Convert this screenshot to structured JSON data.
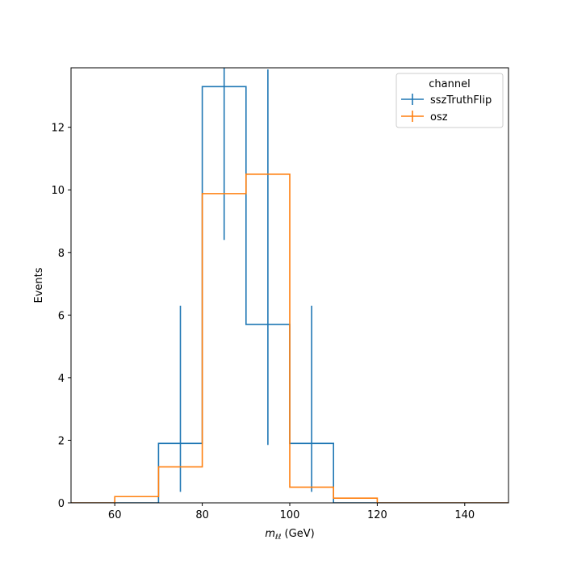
{
  "chart_data": {
    "type": "step",
    "xlabel_main": "m",
    "xlabel_sub": "ℓℓ",
    "xlabel_unit": " (GeV)",
    "ylabel": "Events",
    "xlim": [
      50,
      150
    ],
    "ylim": [
      0,
      13.9
    ],
    "xticks": [
      60,
      80,
      100,
      120,
      140
    ],
    "yticks": [
      0,
      2,
      4,
      6,
      8,
      10,
      12
    ],
    "bin_edges": [
      50,
      60,
      70,
      80,
      90,
      100,
      110,
      120,
      130,
      140,
      150
    ],
    "legend_title": "channel",
    "legend_position": "top-right",
    "series": [
      {
        "name": "sszTruthFlip",
        "color": "#1f77b4",
        "values": [
          0,
          0,
          1.9,
          13.3,
          5.7,
          1.9,
          0,
          0,
          0,
          0
        ],
        "errors": [
          {
            "x": 75,
            "low": 0.35,
            "high": 6.3
          },
          {
            "x": 85,
            "low": 8.4,
            "high": 14.2
          },
          {
            "x": 95,
            "low": 1.85,
            "high": 13.85
          },
          {
            "x": 105,
            "low": 0.35,
            "high": 6.3
          }
        ]
      },
      {
        "name": "osz",
        "color": "#ff7f0e",
        "values": [
          0,
          0.2,
          1.15,
          9.88,
          10.5,
          0.5,
          0.15,
          0,
          0,
          0
        ],
        "errors": []
      }
    ]
  }
}
